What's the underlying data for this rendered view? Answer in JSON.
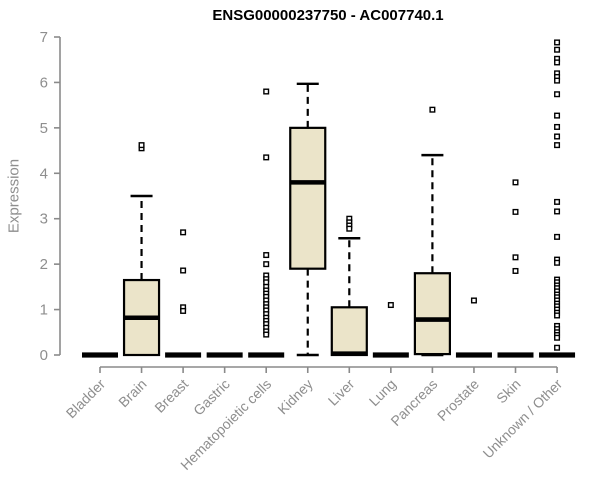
{
  "title": "ENSG00000237750 - AC007740.1",
  "chart_data": {
    "type": "boxplot",
    "title": "ENSG00000237750 - AC007740.1",
    "xlabel": "",
    "ylabel": "Expression",
    "ylim": [
      0,
      7
    ],
    "yticks": [
      0,
      1,
      2,
      3,
      4,
      5,
      6,
      7
    ],
    "grid": false,
    "legend": "none",
    "box_fill_color": "#EBE4C9",
    "box_stroke_color": "#000000",
    "axis_color": "#8a8a8a",
    "label_color": "#8e8e8e",
    "categories": [
      "Bladder",
      "Brain",
      "Breast",
      "Gastric",
      "Hematopoietic cells",
      "Kidney",
      "Liver",
      "Lung",
      "Pancreas",
      "Prostate",
      "Skin",
      "Unknown / Other"
    ],
    "series": [
      {
        "category": "Bladder",
        "whisker_low": 0,
        "q1": 0,
        "median": 0,
        "q3": 0,
        "whisker_high": 0,
        "outliers": []
      },
      {
        "category": "Brain",
        "whisker_low": 0,
        "q1": 0,
        "median": 0.82,
        "q3": 1.65,
        "whisker_high": 3.5,
        "outliers": [
          4.55,
          4.62
        ]
      },
      {
        "category": "Breast",
        "whisker_low": 0,
        "q1": 0,
        "median": 0,
        "q3": 0,
        "whisker_high": 0,
        "outliers": [
          2.7,
          1.86,
          1.05,
          0.97
        ]
      },
      {
        "category": "Gastric",
        "whisker_low": 0,
        "q1": 0,
        "median": 0,
        "q3": 0,
        "whisker_high": 0,
        "outliers": []
      },
      {
        "category": "Hematopoietic cells",
        "whisker_low": 0,
        "q1": 0,
        "median": 0,
        "q3": 0,
        "whisker_high": 0,
        "outliers": [
          5.8,
          4.35,
          2.2,
          2.0,
          1.75,
          1.67,
          1.6,
          1.5,
          1.42,
          1.35,
          1.28,
          1.2,
          1.12,
          1.05,
          0.98,
          0.9,
          0.82,
          0.75,
          0.68,
          0.6,
          0.52,
          0.45
        ]
      },
      {
        "category": "Kidney",
        "whisker_low": 0,
        "q1": 1.9,
        "median": 3.8,
        "q3": 5.0,
        "whisker_high": 5.97,
        "outliers": []
      },
      {
        "category": "Liver",
        "whisker_low": 0,
        "q1": 0,
        "median": 0.03,
        "q3": 1.05,
        "whisker_high": 2.57,
        "outliers": [
          3.0,
          2.92,
          2.85,
          2.78
        ]
      },
      {
        "category": "Lung",
        "whisker_low": 0,
        "q1": 0,
        "median": 0,
        "q3": 0,
        "whisker_high": 0,
        "outliers": [
          1.1
        ]
      },
      {
        "category": "Pancreas",
        "whisker_low": 0,
        "q1": 0.02,
        "median": 0.78,
        "q3": 1.8,
        "whisker_high": 4.4,
        "outliers": [
          5.4
        ]
      },
      {
        "category": "Prostate",
        "whisker_low": 0,
        "q1": 0,
        "median": 0,
        "q3": 0,
        "whisker_high": 0,
        "outliers": [
          1.2
        ]
      },
      {
        "category": "Skin",
        "whisker_low": 0,
        "q1": 0,
        "median": 0,
        "q3": 0,
        "whisker_high": 0,
        "outliers": [
          3.8,
          3.15,
          2.15,
          1.85
        ]
      },
      {
        "category": "Unknown / Other",
        "whisker_low": 0,
        "q1": 0,
        "median": 0,
        "q3": 0,
        "whisker_high": 0,
        "outliers": [
          6.88,
          6.72,
          6.52,
          6.44,
          6.2,
          6.12,
          6.04,
          5.74,
          5.27,
          5.02,
          4.81,
          4.62,
          3.37,
          3.16,
          2.6,
          2.1,
          2.03,
          1.66,
          1.6,
          1.53,
          1.47,
          1.4,
          1.33,
          1.27,
          1.2,
          1.13,
          1.07,
          1.0,
          0.93,
          0.87,
          0.64,
          0.57,
          0.5,
          0.44,
          0.38,
          0.16
        ]
      }
    ]
  }
}
